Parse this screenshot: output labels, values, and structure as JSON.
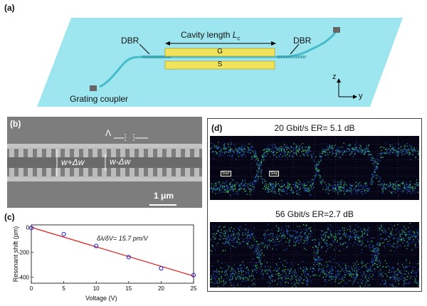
{
  "panels": {
    "a": {
      "label": "(a)",
      "dbr_left": "DBR",
      "dbr_right": "DBR",
      "cavity_label": "Cavity length ",
      "cavity_symbol": "L",
      "cavity_sub": "c",
      "electrode_top": "G",
      "electrode_bottom": "S",
      "grating_coupler": "Grating coupler",
      "axis_z": "z",
      "axis_y": "y",
      "colors": {
        "substrate": "#9ee6ef",
        "electrode": "#f2e35c",
        "waveguide": "#45bccb"
      }
    },
    "b": {
      "label": "(b)",
      "lambda": "Λ",
      "w_plus": "w+Δw",
      "w_minus": "w-Δw",
      "scale": "1 μm"
    },
    "c": {
      "label": "(c)",
      "annotation": "δλ/δV= 15.7 pm/V",
      "xlabel": "Voltage (V)",
      "ylabel": "Resonant shift (pm)"
    },
    "d": {
      "label": "(d)",
      "eye1_title": "20 Gbit/s  ER= 5.1 dB",
      "eye2_title": "56 Gbit/s  ER=2.7 dB",
      "marker_start": "Start",
      "marker_stop": "Stop"
    }
  },
  "chart_data": {
    "type": "scatter",
    "title": "",
    "xlabel": "Voltage (V)",
    "ylabel": "Resonant shift (pm)",
    "x": [
      0,
      5,
      10,
      15,
      20,
      25
    ],
    "y": [
      -5,
      -55,
      -150,
      -240,
      -330,
      -385
    ],
    "fit_line": {
      "x": [
        0,
        25
      ],
      "y": [
        0,
        -392
      ]
    },
    "xlim": [
      0,
      25
    ],
    "ylim": [
      -450,
      20
    ],
    "xticks": [
      0,
      5,
      10,
      15,
      20,
      25
    ],
    "yticks": [
      0,
      -200,
      -400
    ],
    "colors": {
      "points": "#1f1fd6",
      "fit": "#e02020"
    }
  }
}
